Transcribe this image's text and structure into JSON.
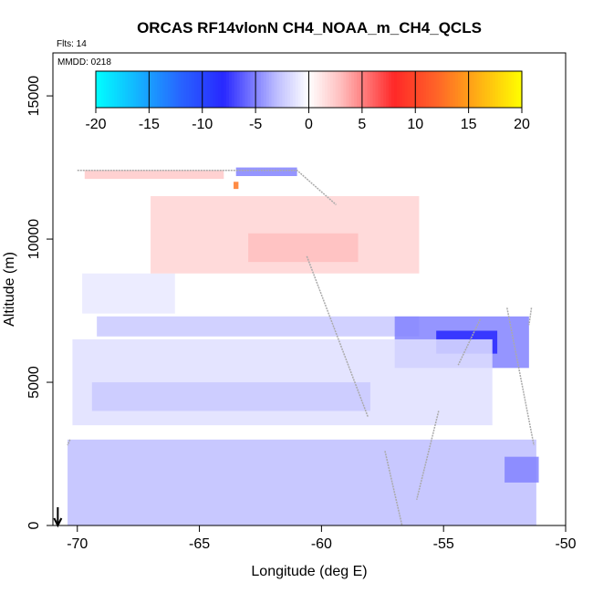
{
  "chart_data": {
    "type": "heatmap",
    "title": "ORCAS RF14vlonN CH4_NOAA_m_CH4_QCLS",
    "subtitle_flights": "Flts: 14",
    "subtitle_date": "MMDD: 0218",
    "xlabel": "Longitude (deg E)",
    "ylabel": "Altitude (m)",
    "xlim": [
      -71,
      -50
    ],
    "ylim": [
      0,
      16500
    ],
    "x_ticks": [
      -70,
      -65,
      -60,
      -55,
      -50
    ],
    "x_tick_labels": [
      "-70",
      "-65",
      "-60",
      "-55",
      "-50"
    ],
    "y_ticks": [
      0,
      5000,
      10000,
      15000
    ],
    "y_tick_labels": [
      "0",
      "5000",
      "10000",
      "15000"
    ],
    "colorbar": {
      "min": -20,
      "max": 20,
      "ticks": [
        -20,
        -15,
        -10,
        -5,
        0,
        5,
        10,
        15,
        20
      ],
      "tick_labels": [
        "-20",
        "-15",
        "-10",
        "-5",
        "0",
        "5",
        "10",
        "15",
        "20"
      ]
    },
    "regions": [
      {
        "lon": [
          -70.4,
          -51.2
        ],
        "alt": [
          0,
          3000
        ],
        "value": -3
      },
      {
        "lon": [
          -52.5,
          -51.1
        ],
        "alt": [
          1500,
          2400
        ],
        "value": -5
      },
      {
        "lon": [
          -69.2,
          -56.0
        ],
        "alt": [
          6600,
          7300
        ],
        "value": -2.5
      },
      {
        "lon": [
          -57.0,
          -51.5
        ],
        "alt": [
          5500,
          7300
        ],
        "value": -5
      },
      {
        "lon": [
          -55.3,
          -52.8
        ],
        "alt": [
          6000,
          6800
        ],
        "value": -8
      },
      {
        "lon": [
          -70.2,
          -53.0
        ],
        "alt": [
          3500,
          6500
        ],
        "value": -1.5
      },
      {
        "lon": [
          -69.4,
          -58.0
        ],
        "alt": [
          4000,
          5000
        ],
        "value": -2.5
      },
      {
        "lon": [
          -69.8,
          -66.0
        ],
        "alt": [
          7400,
          8800
        ],
        "value": -1
      },
      {
        "lon": [
          -67.0,
          -56.0
        ],
        "alt": [
          8800,
          11500
        ],
        "value": 2
      },
      {
        "lon": [
          -63.0,
          -58.5
        ],
        "alt": [
          9200,
          10200
        ],
        "value": 3
      },
      {
        "lon": [
          -69.7,
          -64.0
        ],
        "alt": [
          12100,
          12400
        ],
        "value": 2.5
      },
      {
        "lon": [
          -63.5,
          -61.0
        ],
        "alt": [
          12200,
          12500
        ],
        "value": -5
      },
      {
        "lon": [
          -63.6,
          -63.4
        ],
        "alt": [
          11750,
          12000
        ],
        "value": 13
      }
    ],
    "ascent_point_lon": -70.8
  }
}
